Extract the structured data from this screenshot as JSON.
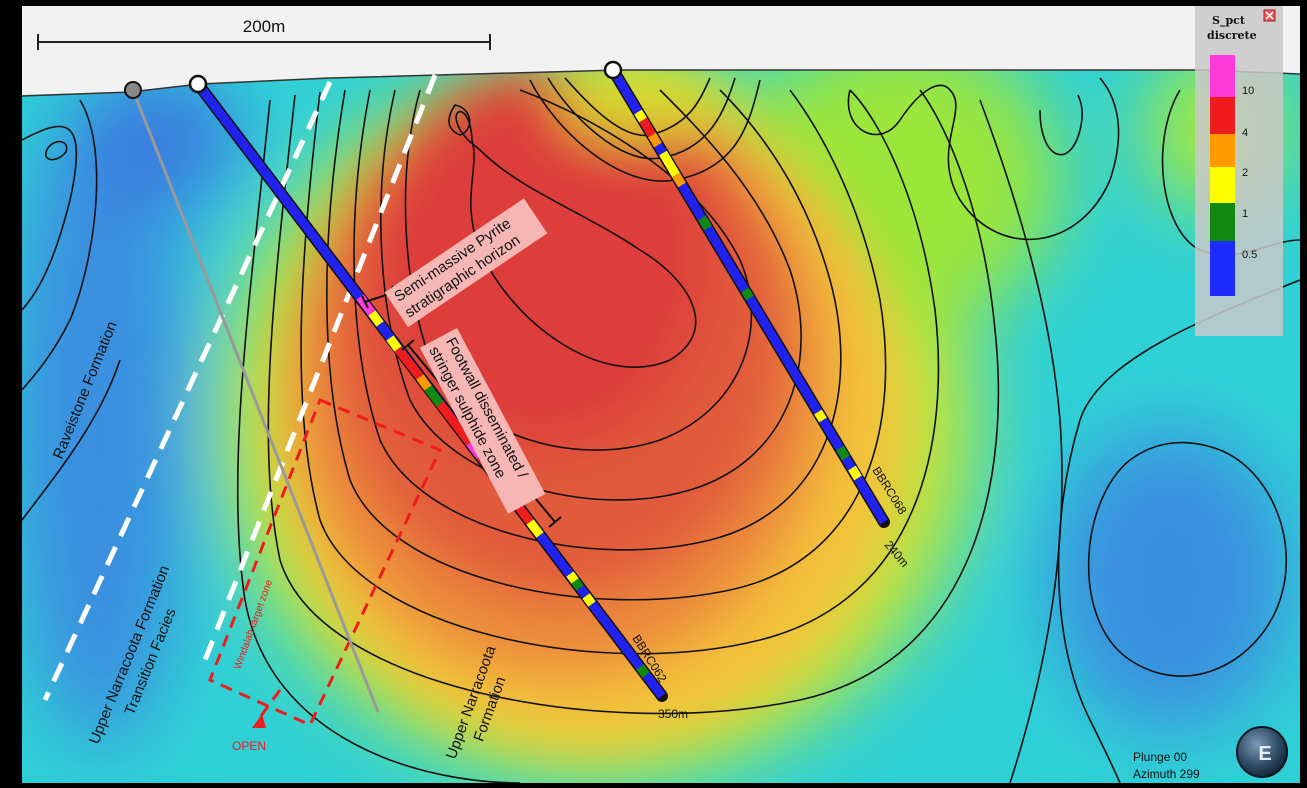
{
  "scale_bar": {
    "label": "200m"
  },
  "legend": {
    "title_line1": "S_pct",
    "title_line2": "discrete",
    "ticks": [
      "10",
      "4",
      "2",
      "1",
      "0.5"
    ],
    "colors": [
      "#ff3ad8",
      "#ee1c1c",
      "#ff9900",
      "#ffff00",
      "#118811",
      "#1e2bff"
    ],
    "close_icon": "close-icon"
  },
  "annotations": {
    "pyrite_line1": "Semi-massive Pyrite",
    "pyrite_line2": "stratigraphic horizon",
    "footwall_line1": "Footwall disseminated /",
    "footwall_line2": "stringer sulphide zone",
    "target_zone": "Windalah target zone",
    "open": "OPEN"
  },
  "formations": {
    "raveistone": "Raveistone Formation",
    "transition_line1": "Upper Narracoota Formation",
    "transition_line2": "Transition Facies",
    "upper_line1": "Upper Narracoota",
    "upper_line2": "Formation"
  },
  "drillholes": {
    "west": {
      "name": "BBRC062",
      "depth": "350m"
    },
    "east": {
      "name": "BBRC068",
      "depth": "240m"
    }
  },
  "orientation": {
    "plunge": "Plunge 00",
    "azimuth": "Azimuth 299",
    "compass_icon": "globe-icon"
  }
}
